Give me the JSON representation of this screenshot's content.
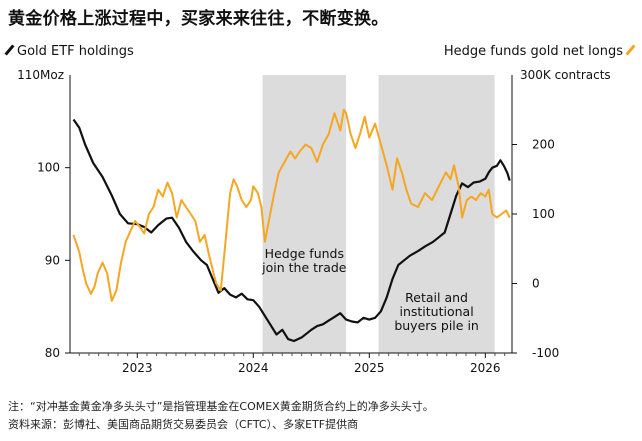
{
  "title": "黄金价格上涨过程中，买家来来往往，不断变换。",
  "legend": {
    "left": {
      "label": "Gold ETF holdings",
      "color": "#111111"
    },
    "right": {
      "label": "Hedge funds gold net longs",
      "color": "#f5a623"
    }
  },
  "chart_data": {
    "type": "line",
    "left_axis": {
      "unit_label": "110Moz",
      "range": [
        80,
        110
      ],
      "ticks": [
        80,
        90,
        100
      ]
    },
    "right_axis": {
      "unit_label": "300K contracts",
      "range": [
        -100,
        300
      ],
      "ticks": [
        -100,
        0,
        100,
        200
      ]
    },
    "x_axis": {
      "range": [
        2022.42,
        2026.23
      ],
      "ticks": [
        2023,
        2024,
        2025,
        2026
      ],
      "tick_labels": [
        "2023",
        "2024",
        "2025",
        "2026"
      ]
    },
    "shaded_periods": [
      {
        "start": 2024.08,
        "end": 2024.8,
        "label": [
          "Hedge funds",
          "join the trade"
        ]
      },
      {
        "start": 2025.08,
        "end": 2026.08,
        "label": [
          "Retail and",
          "institutional",
          "buyers pile in"
        ]
      }
    ],
    "series": [
      {
        "name": "Gold ETF holdings",
        "axis": "left",
        "color": "#111111",
        "points": [
          [
            2022.45,
            105.2
          ],
          [
            2022.5,
            104.3
          ],
          [
            2022.55,
            102.5
          ],
          [
            2022.62,
            100.5
          ],
          [
            2022.7,
            99.0
          ],
          [
            2022.78,
            97.0
          ],
          [
            2022.85,
            95.0
          ],
          [
            2022.92,
            94.0
          ],
          [
            2023.0,
            93.9
          ],
          [
            2023.06,
            93.6
          ],
          [
            2023.12,
            93.0
          ],
          [
            2023.18,
            93.8
          ],
          [
            2023.25,
            94.5
          ],
          [
            2023.3,
            94.6
          ],
          [
            2023.36,
            93.5
          ],
          [
            2023.42,
            92.0
          ],
          [
            2023.48,
            91.0
          ],
          [
            2023.55,
            90.0
          ],
          [
            2023.6,
            89.5
          ],
          [
            2023.65,
            88.0
          ],
          [
            2023.7,
            86.5
          ],
          [
            2023.75,
            87.0
          ],
          [
            2023.8,
            86.3
          ],
          [
            2023.85,
            86.0
          ],
          [
            2023.9,
            86.4
          ],
          [
            2023.95,
            85.8
          ],
          [
            2024.0,
            85.7
          ],
          [
            2024.05,
            85.0
          ],
          [
            2024.1,
            84.0
          ],
          [
            2024.15,
            83.0
          ],
          [
            2024.2,
            82.0
          ],
          [
            2024.25,
            82.5
          ],
          [
            2024.3,
            81.5
          ],
          [
            2024.35,
            81.3
          ],
          [
            2024.42,
            81.7
          ],
          [
            2024.5,
            82.5
          ],
          [
            2024.55,
            82.9
          ],
          [
            2024.6,
            83.1
          ],
          [
            2024.65,
            83.5
          ],
          [
            2024.7,
            83.9
          ],
          [
            2024.75,
            84.3
          ],
          [
            2024.8,
            83.6
          ],
          [
            2024.85,
            83.4
          ],
          [
            2024.9,
            83.3
          ],
          [
            2024.95,
            83.8
          ],
          [
            2025.0,
            83.6
          ],
          [
            2025.05,
            83.8
          ],
          [
            2025.1,
            84.5
          ],
          [
            2025.15,
            86.0
          ],
          [
            2025.2,
            88.0
          ],
          [
            2025.25,
            89.5
          ],
          [
            2025.3,
            90.0
          ],
          [
            2025.35,
            90.5
          ],
          [
            2025.42,
            91.0
          ],
          [
            2025.48,
            91.5
          ],
          [
            2025.55,
            92.0
          ],
          [
            2025.6,
            92.5
          ],
          [
            2025.65,
            93.0
          ],
          [
            2025.7,
            95.0
          ],
          [
            2025.75,
            97.0
          ],
          [
            2025.8,
            98.3
          ],
          [
            2025.85,
            97.9
          ],
          [
            2025.9,
            98.4
          ],
          [
            2025.95,
            98.5
          ],
          [
            2026.0,
            98.8
          ],
          [
            2026.03,
            99.5
          ],
          [
            2026.06,
            100.0
          ],
          [
            2026.1,
            100.2
          ],
          [
            2026.13,
            100.8
          ],
          [
            2026.16,
            100.2
          ],
          [
            2026.19,
            99.4
          ],
          [
            2026.21,
            98.6
          ]
        ]
      },
      {
        "name": "Hedge funds gold net longs",
        "axis": "right",
        "color": "#f5a623",
        "points": [
          [
            2022.45,
            70
          ],
          [
            2022.48,
            55
          ],
          [
            2022.5,
            45
          ],
          [
            2022.53,
            20
          ],
          [
            2022.56,
            0
          ],
          [
            2022.6,
            -15
          ],
          [
            2022.63,
            -5
          ],
          [
            2022.66,
            15
          ],
          [
            2022.7,
            30
          ],
          [
            2022.74,
            15
          ],
          [
            2022.78,
            -25
          ],
          [
            2022.82,
            -10
          ],
          [
            2022.86,
            30
          ],
          [
            2022.9,
            60
          ],
          [
            2022.94,
            75
          ],
          [
            2022.98,
            90
          ],
          [
            2023.02,
            82
          ],
          [
            2023.06,
            72
          ],
          [
            2023.1,
            100
          ],
          [
            2023.14,
            110
          ],
          [
            2023.18,
            135
          ],
          [
            2023.22,
            125
          ],
          [
            2023.26,
            145
          ],
          [
            2023.3,
            130
          ],
          [
            2023.34,
            95
          ],
          [
            2023.38,
            120
          ],
          [
            2023.42,
            110
          ],
          [
            2023.46,
            100
          ],
          [
            2023.5,
            90
          ],
          [
            2023.54,
            60
          ],
          [
            2023.58,
            70
          ],
          [
            2023.62,
            40
          ],
          [
            2023.65,
            20
          ],
          [
            2023.68,
            0
          ],
          [
            2023.72,
            -10
          ],
          [
            2023.76,
            60
          ],
          [
            2023.8,
            130
          ],
          [
            2023.83,
            150
          ],
          [
            2023.86,
            140
          ],
          [
            2023.9,
            120
          ],
          [
            2023.94,
            110
          ],
          [
            2023.98,
            120
          ],
          [
            2024.0,
            140
          ],
          [
            2024.04,
            130
          ],
          [
            2024.07,
            110
          ],
          [
            2024.1,
            60
          ],
          [
            2024.14,
            95
          ],
          [
            2024.18,
            130
          ],
          [
            2024.22,
            160
          ],
          [
            2024.27,
            175
          ],
          [
            2024.32,
            190
          ],
          [
            2024.36,
            180
          ],
          [
            2024.4,
            190
          ],
          [
            2024.45,
            200
          ],
          [
            2024.5,
            195
          ],
          [
            2024.55,
            175
          ],
          [
            2024.6,
            200
          ],
          [
            2024.65,
            215
          ],
          [
            2024.7,
            245
          ],
          [
            2024.75,
            220
          ],
          [
            2024.78,
            250
          ],
          [
            2024.8,
            245
          ],
          [
            2024.84,
            215
          ],
          [
            2024.88,
            195
          ],
          [
            2024.92,
            215
          ],
          [
            2024.96,
            240
          ],
          [
            2025.0,
            210
          ],
          [
            2025.05,
            230
          ],
          [
            2025.1,
            200
          ],
          [
            2025.15,
            170
          ],
          [
            2025.2,
            135
          ],
          [
            2025.24,
            180
          ],
          [
            2025.28,
            160
          ],
          [
            2025.32,
            135
          ],
          [
            2025.36,
            115
          ],
          [
            2025.42,
            110
          ],
          [
            2025.48,
            130
          ],
          [
            2025.54,
            120
          ],
          [
            2025.6,
            140
          ],
          [
            2025.66,
            160
          ],
          [
            2025.7,
            150
          ],
          [
            2025.73,
            170
          ],
          [
            2025.77,
            140
          ],
          [
            2025.8,
            95
          ],
          [
            2025.84,
            120
          ],
          [
            2025.88,
            125
          ],
          [
            2025.92,
            120
          ],
          [
            2025.96,
            130
          ],
          [
            2026.0,
            125
          ],
          [
            2026.03,
            135
          ],
          [
            2026.06,
            100
          ],
          [
            2026.1,
            95
          ],
          [
            2026.14,
            100
          ],
          [
            2026.18,
            105
          ],
          [
            2026.21,
            95
          ]
        ]
      }
    ]
  },
  "annotations": {
    "note": "注：“对冲基金黄金净多头头寸”是指管理基金在COMEX黄金期货合约上的净多头头寸。",
    "source": "资料来源：彭博社、美国商品期货交易委员会（CFTC）、多家ETF提供商"
  }
}
